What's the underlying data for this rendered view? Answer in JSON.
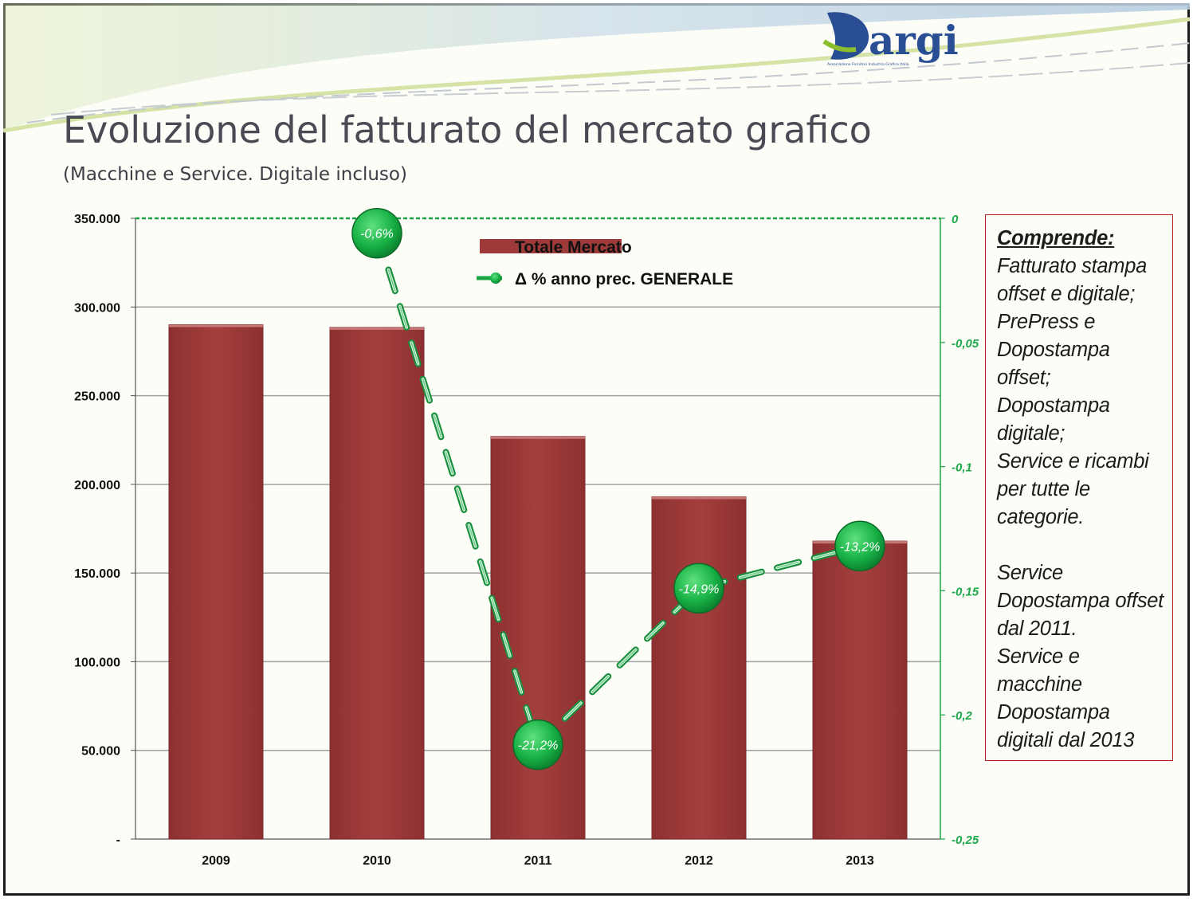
{
  "header": {
    "title": "Evoluzione del fatturato del mercato grafico",
    "subtitle": "(Macchine e Service. Digitale incluso)"
  },
  "logo": {
    "text": "argi",
    "tagline": "Associazione Fornitori Industria Grafica Italia"
  },
  "colors": {
    "bar": "#9e3a3a",
    "line": "#19a544",
    "accent_box": "#b02020",
    "text": "#4a4a55"
  },
  "notes": {
    "heading": "Comprende:",
    "lines": [
      "Fatturato stampa",
      "offset e digitale;",
      "PrePress e",
      "Dopostampa",
      "offset;",
      "Dopostampa",
      "digitale;",
      "Service e ricambi",
      "per tutte le",
      "categorie.",
      "",
      "Service",
      "Dopostampa offset",
      "dal 2011.",
      "Service e",
      "macchine",
      "Dopostampa",
      "digitali dal 2013"
    ]
  },
  "chart_data": {
    "type": "bar",
    "categories": [
      "2009",
      "2010",
      "2011",
      "2012",
      "2013"
    ],
    "series": [
      {
        "name": "Totale Mercato",
        "type": "bar",
        "axis": "left",
        "values": [
          290000,
          288500,
          227000,
          193000,
          168000
        ]
      },
      {
        "name": "Δ % anno prec. GENERALE",
        "type": "line",
        "axis": "right",
        "values": [
          null,
          -0.006,
          -0.212,
          -0.149,
          -0.132
        ],
        "labels": [
          "",
          "-0,6%",
          "-21,2%",
          "-14,9%",
          "-13,2%"
        ]
      }
    ],
    "ylim": [
      0,
      350000
    ],
    "y_ticks": [
      0,
      50000,
      100000,
      150000,
      200000,
      250000,
      300000,
      350000
    ],
    "y_tick_labels": [
      "-",
      "50.000",
      "100.000",
      "150.000",
      "200.000",
      "250.000",
      "300.000",
      "350.000"
    ],
    "y2lim": [
      -0.25,
      0
    ],
    "y2_ticks": [
      0,
      -0.05,
      -0.1,
      -0.15,
      -0.2,
      -0.25
    ],
    "y2_tick_labels": [
      "0",
      "-0,05",
      "-0,1",
      "-0,15",
      "-0,2",
      "-0,25"
    ],
    "title": "",
    "xlabel": "",
    "ylabel": "",
    "grid": true,
    "legend_position": "top-center"
  }
}
